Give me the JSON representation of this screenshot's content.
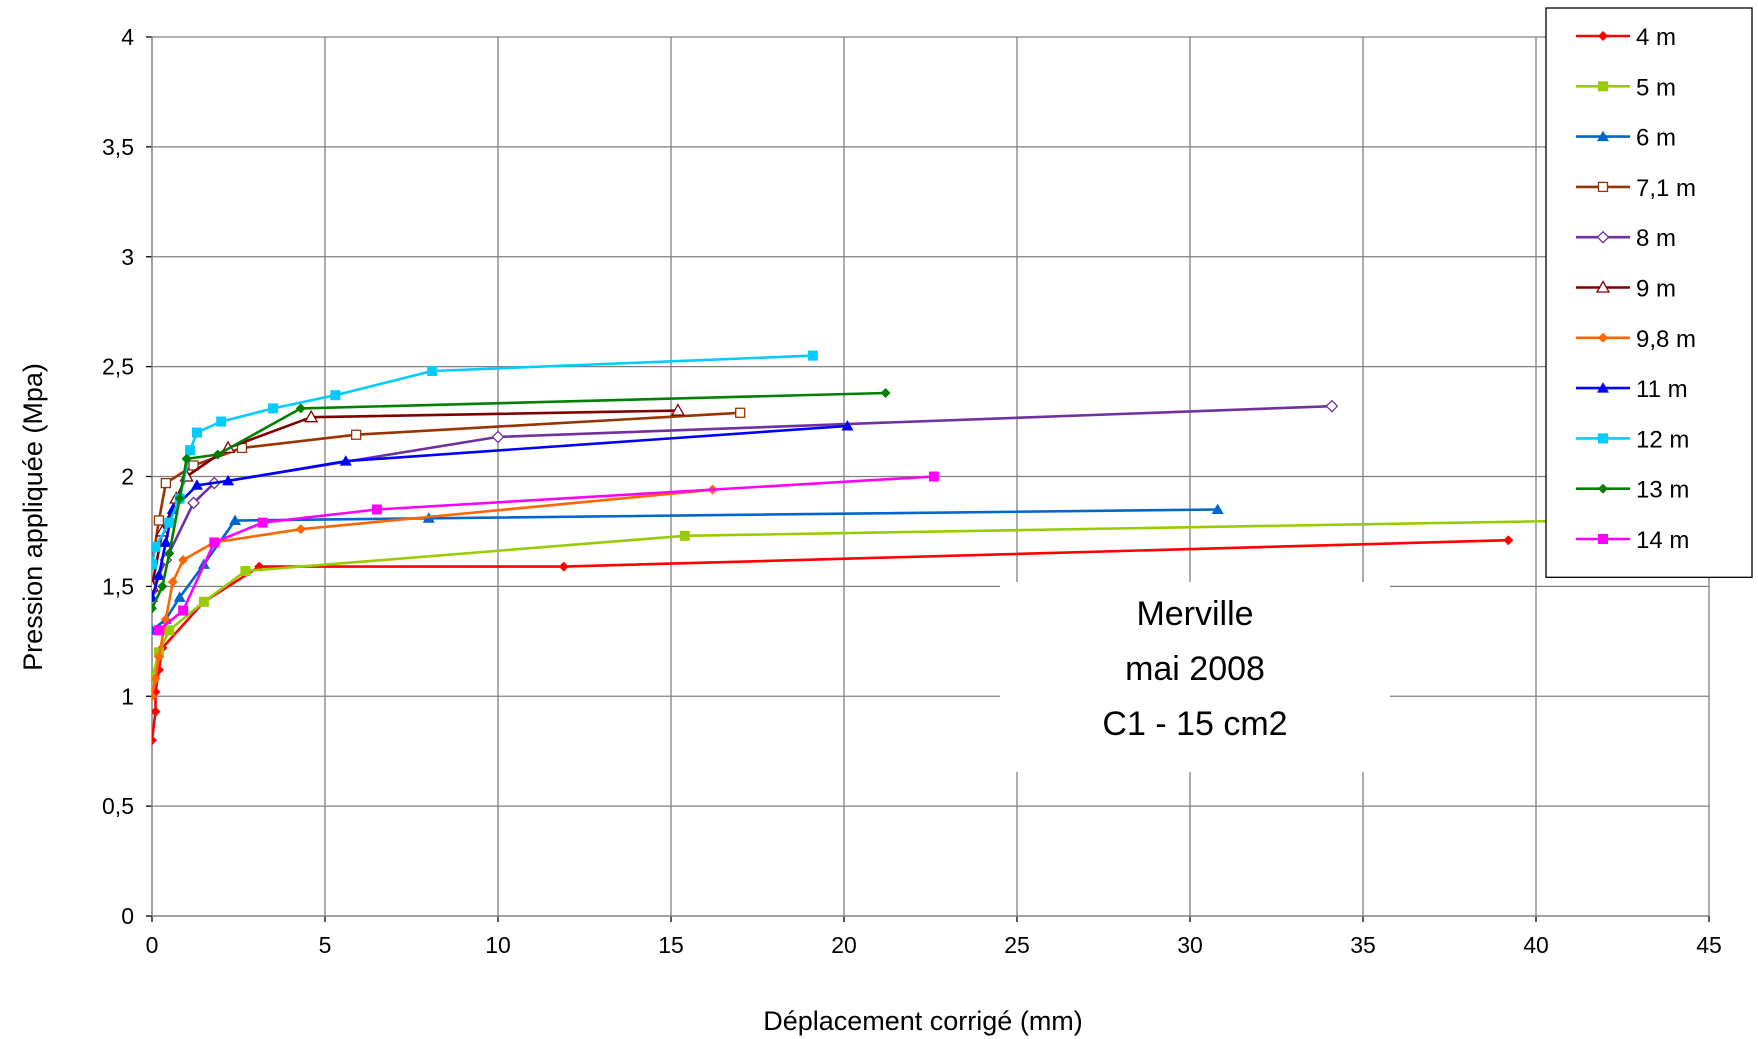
{
  "chart_data": {
    "type": "line",
    "xlabel": "Déplacement corrigé (mm)",
    "ylabel": "Pression appliquée (Mpa)",
    "xlim": [
      0,
      45
    ],
    "ylim": [
      0,
      4
    ],
    "x_ticks": [
      "0",
      "5",
      "10",
      "15",
      "20",
      "25",
      "30",
      "35",
      "40",
      "45"
    ],
    "y_ticks": [
      "0",
      "0,5",
      "1",
      "1,5",
      "2",
      "2,5",
      "3",
      "3,5",
      "4"
    ],
    "grid": true,
    "legend_position": "top-right",
    "annotation": [
      "Merville",
      "mai 2008",
      "C1 - 15 cm2"
    ],
    "series": [
      {
        "name": "4 m",
        "color": "#ff0000",
        "marker": "diamond-filled",
        "points": [
          [
            0,
            0.8
          ],
          [
            0.1,
            0.93
          ],
          [
            0.1,
            1.02
          ],
          [
            0.2,
            1.12
          ],
          [
            0.3,
            1.22
          ],
          [
            1.5,
            1.43
          ],
          [
            3.1,
            1.59
          ],
          [
            11.9,
            1.59
          ],
          [
            39.2,
            1.71
          ]
        ]
      },
      {
        "name": "5 m",
        "color": "#99cc00",
        "marker": "square-filled",
        "points": [
          [
            0,
            1.08
          ],
          [
            0.2,
            1.2
          ],
          [
            0.5,
            1.3
          ],
          [
            1.5,
            1.43
          ],
          [
            2.7,
            1.57
          ],
          [
            15.4,
            1.73
          ],
          [
            45.2,
            1.81
          ]
        ]
      },
      {
        "name": "6 m",
        "color": "#0066cc",
        "marker": "triangle-filled",
        "points": [
          [
            0,
            1.3
          ],
          [
            0.4,
            1.35
          ],
          [
            0.8,
            1.45
          ],
          [
            1.5,
            1.6
          ],
          [
            2.4,
            1.8
          ],
          [
            8,
            1.81
          ],
          [
            30.8,
            1.85
          ]
        ]
      },
      {
        "name": "7,1 m",
        "color": "#993300",
        "marker": "square-open",
        "points": [
          [
            0,
            1.6
          ],
          [
            0.2,
            1.8
          ],
          [
            0.4,
            1.97
          ],
          [
            1.2,
            2.05
          ],
          [
            2.6,
            2.13
          ],
          [
            5.9,
            2.19
          ],
          [
            17,
            2.29
          ]
        ]
      },
      {
        "name": "8 m",
        "color": "#7030a0",
        "marker": "diamond-open",
        "points": [
          [
            0,
            1.48
          ],
          [
            0.4,
            1.62
          ],
          [
            1.2,
            1.88
          ],
          [
            1.8,
            1.97
          ],
          [
            10,
            2.18
          ],
          [
            34.1,
            2.32
          ]
        ]
      },
      {
        "name": "9 m",
        "color": "#800000",
        "marker": "triangle-open",
        "points": [
          [
            0,
            1.5
          ],
          [
            0.3,
            1.75
          ],
          [
            0.7,
            1.9
          ],
          [
            1,
            2.0
          ],
          [
            2.2,
            2.13
          ],
          [
            4.6,
            2.27
          ],
          [
            15.2,
            2.3
          ]
        ]
      },
      {
        "name": "9,8 m",
        "color": "#ff6600",
        "marker": "diamond-filled",
        "points": [
          [
            0,
            1.0
          ],
          [
            0.1,
            1.08
          ],
          [
            0.2,
            1.18
          ],
          [
            0.4,
            1.35
          ],
          [
            0.6,
            1.52
          ],
          [
            0.9,
            1.62
          ],
          [
            1.8,
            1.7
          ],
          [
            4.3,
            1.76
          ],
          [
            16.2,
            1.94
          ]
        ]
      },
      {
        "name": "11 m",
        "color": "#0000ff",
        "marker": "triangle-filled",
        "points": [
          [
            0,
            1.45
          ],
          [
            0.2,
            1.55
          ],
          [
            0.4,
            1.7
          ],
          [
            0.6,
            1.85
          ],
          [
            1.3,
            1.96
          ],
          [
            2.2,
            1.98
          ],
          [
            5.6,
            2.07
          ],
          [
            20.1,
            2.23
          ]
        ]
      },
      {
        "name": "12 m",
        "color": "#00ccff",
        "marker": "square-filled",
        "points": [
          [
            0,
            1.6
          ],
          [
            0.1,
            1.68
          ],
          [
            0.5,
            1.79
          ],
          [
            0.8,
            1.9
          ],
          [
            1.1,
            2.12
          ],
          [
            1.3,
            2.2
          ],
          [
            2,
            2.25
          ],
          [
            3.5,
            2.31
          ],
          [
            5.3,
            2.37
          ],
          [
            8.1,
            2.48
          ],
          [
            19.1,
            2.55
          ]
        ]
      },
      {
        "name": "13 m",
        "color": "#008000",
        "marker": "diamond-filled",
        "points": [
          [
            0,
            1.4
          ],
          [
            0.3,
            1.5
          ],
          [
            0.5,
            1.65
          ],
          [
            0.8,
            1.9
          ],
          [
            1,
            2.08
          ],
          [
            1.9,
            2.1
          ],
          [
            4.3,
            2.31
          ],
          [
            21.2,
            2.38
          ]
        ]
      },
      {
        "name": "14 m",
        "color": "#ff00ff",
        "marker": "square-filled",
        "points": [
          [
            0.2,
            1.3
          ],
          [
            0.9,
            1.39
          ],
          [
            1.8,
            1.7
          ],
          [
            3.2,
            1.79
          ],
          [
            6.5,
            1.85
          ],
          [
            22.6,
            2.0
          ]
        ]
      }
    ]
  }
}
